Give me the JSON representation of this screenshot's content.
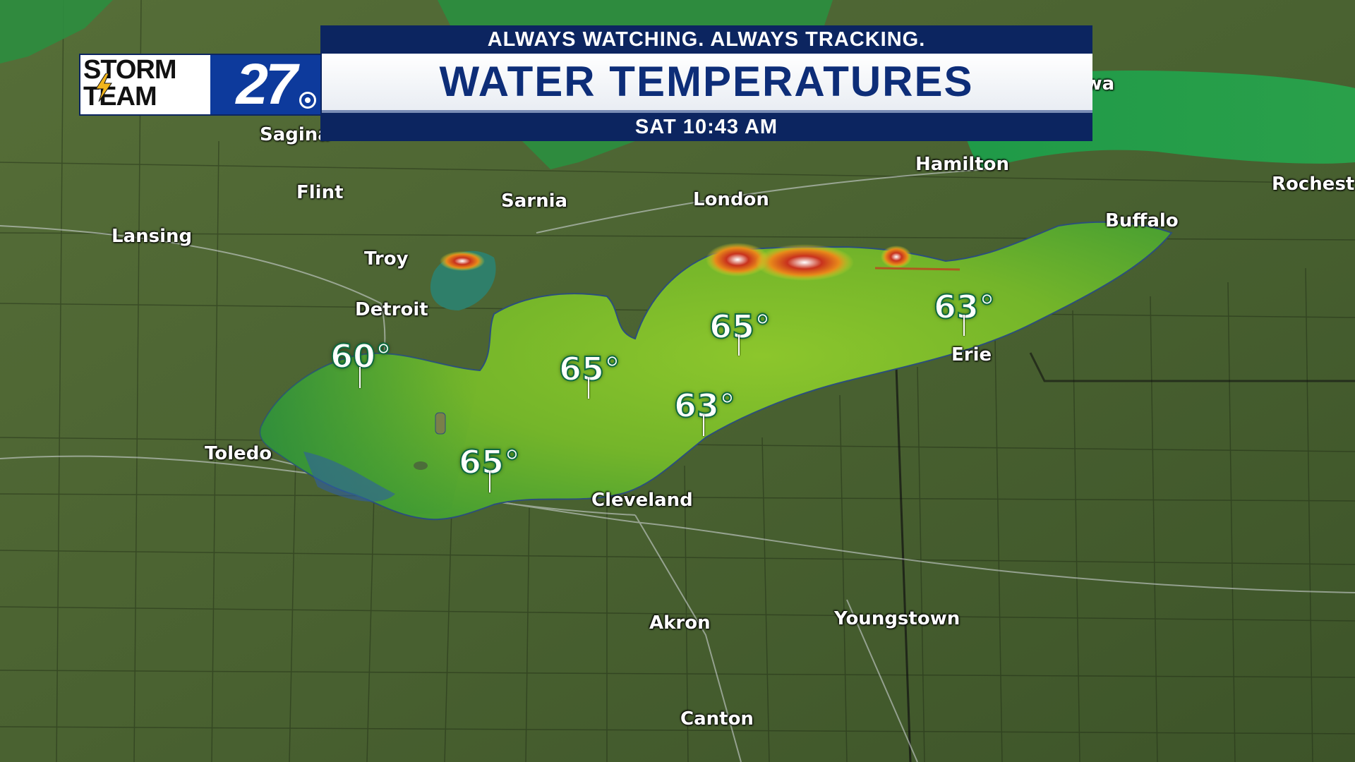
{
  "header": {
    "tagline": "ALWAYS WATCHING. ALWAYS TRACKING.",
    "title": "WATER TEMPERATURES",
    "timestamp": "SAT 10:43 AM"
  },
  "logo": {
    "line1": "STORM",
    "line2": "TEAM",
    "number": "27"
  },
  "cities": [
    {
      "name": "Sagina"
    },
    {
      "name": "Flint"
    },
    {
      "name": "Lansing"
    },
    {
      "name": "Troy"
    },
    {
      "name": "Detroit"
    },
    {
      "name": "Toledo"
    },
    {
      "name": "Sarnia"
    },
    {
      "name": "London"
    },
    {
      "name": "Hamilton"
    },
    {
      "name": "Oshawa"
    },
    {
      "name": "Rochest"
    },
    {
      "name": "Buffalo"
    },
    {
      "name": "Erie"
    },
    {
      "name": "Cleveland"
    },
    {
      "name": "Akron"
    },
    {
      "name": "Youngstown"
    },
    {
      "name": "Canton"
    }
  ],
  "temperatures": [
    {
      "value": "60°"
    },
    {
      "value": "65°"
    },
    {
      "value": "65°"
    },
    {
      "value": "63°"
    },
    {
      "value": "65°"
    },
    {
      "value": "63°"
    }
  ],
  "colors": {
    "lake_main": "#6fb52a",
    "lake_cool": "#2f8f3a",
    "lake_warm": "#b8d22a",
    "hot_spot": "#d13b1f",
    "header_navy": "#0c2560",
    "title_text": "#0d2d78",
    "land": "#4a6533"
  }
}
